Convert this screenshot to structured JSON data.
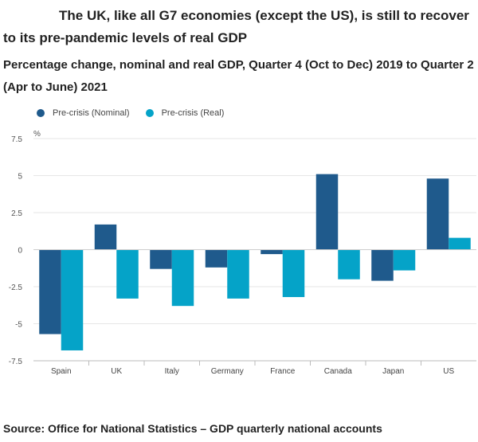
{
  "title": "The UK, like all G7 economies (except the US), is still to recover to its pre-pandemic levels of real GDP",
  "subtitle": "Percentage change, nominal and real GDP, Quarter 4 (Oct to Dec) 2019 to Quarter 2 (Apr to June) 2021",
  "source": "Source: Office for National Statistics – GDP quarterly national accounts",
  "colors": {
    "nominal": "#1f5a8c",
    "real": "#05a3c8",
    "grid": "#e6e6e6",
    "axis": "#bbbbbb"
  },
  "chart_data": {
    "type": "bar",
    "unit": "%",
    "categories": [
      "Spain",
      "UK",
      "Italy",
      "Germany",
      "France",
      "Canada",
      "Japan",
      "US"
    ],
    "series": [
      {
        "name": "Pre-crisis (Nominal)",
        "values": [
          -5.7,
          1.7,
          -1.3,
          -1.2,
          -0.3,
          5.1,
          -2.1,
          4.8
        ]
      },
      {
        "name": "Pre-crisis (Real)",
        "values": [
          -6.8,
          -3.3,
          -3.8,
          -3.3,
          -3.2,
          -2.0,
          -1.4,
          0.8
        ]
      }
    ],
    "yticks": [
      "7.5",
      "5",
      "2.5",
      "0",
      "-2.5",
      "-5",
      "-7.5"
    ],
    "ylim": [
      -7.5,
      7.5
    ],
    "grid": true,
    "legend_position": "top-left"
  }
}
